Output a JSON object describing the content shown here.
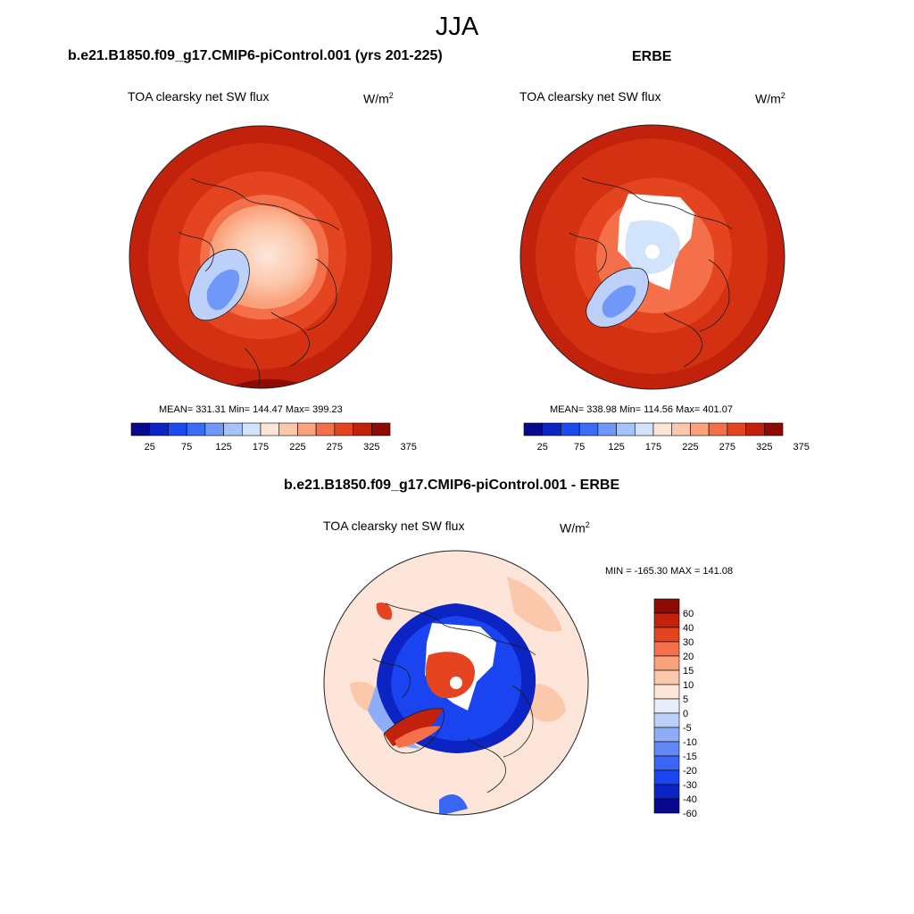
{
  "page": {
    "season": "JJA"
  },
  "colors": {
    "abs_scale": [
      "#08088c",
      "#0c24c4",
      "#1a4af0",
      "#3a6cf6",
      "#6f98f8",
      "#a6c2fa",
      "#d2e3fc",
      "#fde6d9",
      "#fcc8ab",
      "#f9a27b",
      "#f3704a",
      "#e44420",
      "#c2210c",
      "#8c0c04"
    ],
    "diff_scale": [
      "#08088c",
      "#0c24c4",
      "#1a44f0",
      "#3a66f4",
      "#6288f6",
      "#8eacf8",
      "#bcd0fa",
      "#e6eefc",
      "#fde6d9",
      "#fcc8ab",
      "#f9a27b",
      "#f3704a",
      "#e44420",
      "#c2210c",
      "#8c0c04"
    ],
    "land": "#1a1a1a"
  },
  "panels": [
    {
      "id": "model",
      "title": "b.e21.B1850.f09_g17.CMIP6-piControl.001 (yrs 201-225)",
      "variable": "TOA clearsky net SW flux",
      "units_base": "W/m",
      "units_exp": "2",
      "stats": {
        "text": "MEAN= 331.31  Min= 144.47  Max= 399.23",
        "mean": 331.31,
        "min": 144.47,
        "max": 399.23
      }
    },
    {
      "id": "obs",
      "title": "ERBE",
      "variable": "TOA clearsky net SW flux",
      "units_base": "W/m",
      "units_exp": "2",
      "stats": {
        "text": "MEAN= 338.98  Min= 114.56  Max= 401.07",
        "mean": 338.98,
        "min": 114.56,
        "max": 401.07
      }
    },
    {
      "id": "diff",
      "title": "b.e21.B1850.f09_g17.CMIP6-piControl.001 - ERBE",
      "variable": "TOA clearsky net SW flux",
      "units_base": "W/m",
      "units_exp": "2",
      "stats": {
        "text": "MIN = -165.30 MAX = 141.08",
        "min": -165.3,
        "max": 141.08
      }
    }
  ],
  "chart_data": [
    {
      "type": "heatmap",
      "projection": "north polar stereographic",
      "title": "b.e21.B1850.f09_g17.CMIP6-piControl.001 (yrs 201-225)",
      "variable": "TOA clearsky net SW flux",
      "units": "W/m^2",
      "mean": 331.31,
      "min": 144.47,
      "max": 399.23,
      "colorbar": {
        "orientation": "horizontal",
        "levels": [
          25,
          50,
          75,
          100,
          125,
          150,
          175,
          200,
          225,
          250,
          275,
          300,
          325,
          350,
          375
        ],
        "tick_labels": [
          "25",
          "75",
          "125",
          "175",
          "225",
          "275",
          "325",
          "375"
        ]
      }
    },
    {
      "type": "heatmap",
      "projection": "north polar stereographic",
      "title": "ERBE",
      "variable": "TOA clearsky net SW flux",
      "units": "W/m^2",
      "mean": 338.98,
      "min": 114.56,
      "max": 401.07,
      "colorbar": {
        "orientation": "horizontal",
        "levels": [
          25,
          50,
          75,
          100,
          125,
          150,
          175,
          200,
          225,
          250,
          275,
          300,
          325,
          350,
          375
        ],
        "tick_labels": [
          "25",
          "75",
          "125",
          "175",
          "225",
          "275",
          "325",
          "375"
        ]
      }
    },
    {
      "type": "heatmap",
      "projection": "north polar stereographic",
      "title": "b.e21.B1850.f09_g17.CMIP6-piControl.001 - ERBE",
      "variable": "TOA clearsky net SW flux",
      "units": "W/m^2",
      "min": -165.3,
      "max": 141.08,
      "colorbar": {
        "orientation": "vertical",
        "levels": [
          -60,
          -40,
          -30,
          -20,
          -15,
          -10,
          -5,
          0,
          5,
          10,
          15,
          20,
          30,
          40,
          60
        ],
        "tick_labels": [
          "60",
          "40",
          "30",
          "20",
          "15",
          "10",
          "5",
          "0",
          "-5",
          "-10",
          "-15",
          "-20",
          "-30",
          "-40",
          "-60"
        ]
      }
    }
  ]
}
